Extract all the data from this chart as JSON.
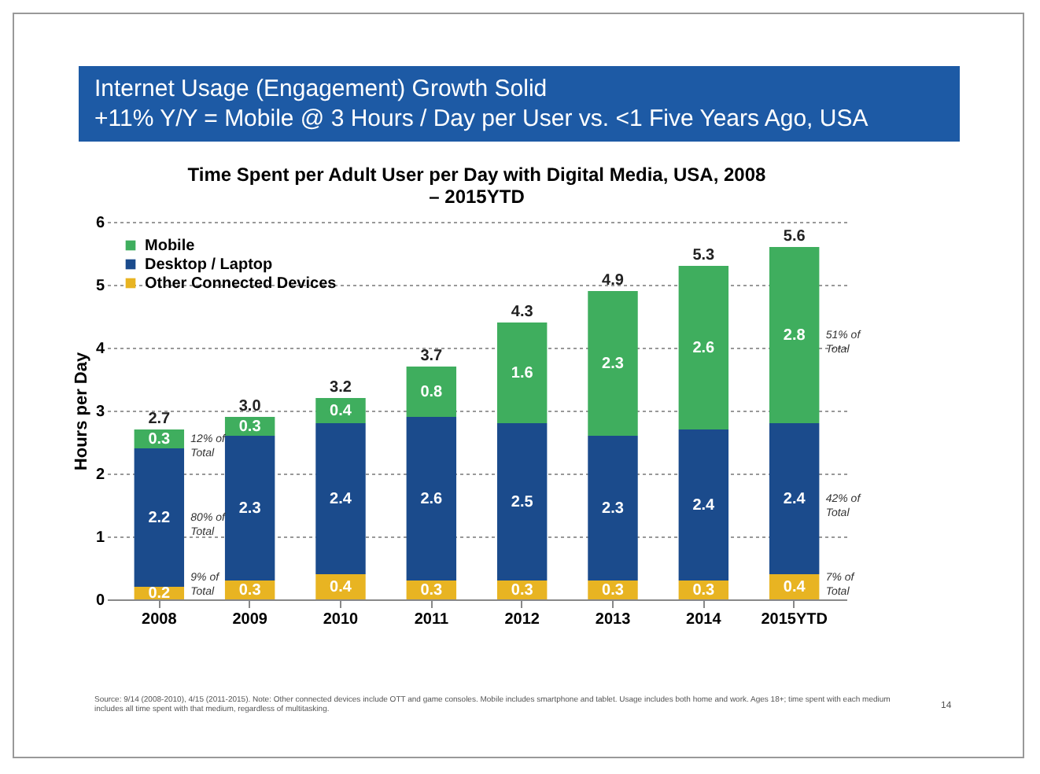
{
  "chart_data": {
    "type": "bar",
    "title": "Internet Usage (Engagement) Growth Solid",
    "subtitle": "+11% Y/Y = Mobile @ 3 Hours / Day per User vs. <1 Five Years Ago, USA",
    "ylabel": "Hours per Day",
    "annotations": [
      "Time Spent per Adult User per Day with Digital Media, USA, 2008 – 2015YTD",
      "12% of Total",
      "80% of Total",
      "9% of Total",
      "51% of Total",
      "42% of Total",
      "7% of Total",
      "Source: 9/14 (2008-2010), 4/15 (2011-2015). Note: Other connected devices include OTT and game consoles. Mobile includes smartphone and tablet. Usage includes both home and work. Ages 18+; time spent with each medium includes all time spent with that medium, regardless of multitasking.",
      "14"
    ],
    "categories": [
      "2008",
      "2009",
      "2010",
      "2011",
      "2012",
      "2013",
      "2014",
      "2015YTD"
    ],
    "series": [
      {
        "name": "Other Connected Devices",
        "color": "#e8b422",
        "values": [
          0.2,
          0.3,
          0.4,
          0.3,
          0.3,
          0.3,
          0.3,
          0.4
        ]
      },
      {
        "name": "Desktop / Laptop",
        "color": "#1b4b8c",
        "values": [
          2.2,
          2.3,
          2.4,
          2.6,
          2.5,
          2.3,
          2.4,
          2.4
        ]
      },
      {
        "name": "Mobile",
        "color": "#3fae5e",
        "values": [
          0.3,
          0.3,
          0.4,
          0.8,
          1.6,
          2.3,
          2.6,
          2.8
        ]
      }
    ],
    "stacked": true,
    "data_labels": true,
    "totals": [
      "2.7",
      "3.0",
      "3.2",
      "3.7",
      "4.3",
      "4.9",
      "5.3",
      "5.6"
    ],
    "ylim": [
      0,
      6
    ],
    "yticks": [
      0,
      1,
      2,
      3,
      4,
      5,
      6
    ],
    "grid": "y",
    "legend": "top left"
  }
}
